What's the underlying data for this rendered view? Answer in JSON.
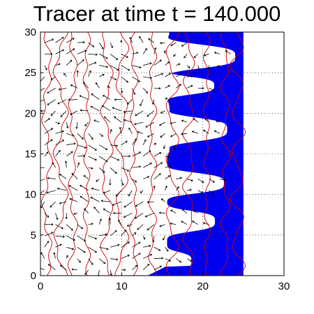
{
  "chart_data": {
    "type": "quiver",
    "title": "Tracer at time t = 140.000",
    "xlabel": "",
    "ylabel": "",
    "xlim": [
      0,
      30
    ],
    "ylim": [
      0,
      30
    ],
    "xticks": [
      0,
      10,
      20,
      30
    ],
    "yticks": [
      0,
      5,
      10,
      15,
      20,
      25,
      30
    ],
    "grid": "dotted",
    "tracer_color": "#0000ee",
    "contour_color": "#cc0000",
    "arrow_color": "#000000",
    "tracer_front": {
      "x_base": 15.6,
      "x_right_edge": 25,
      "fingers": [
        {
          "y": 1.8,
          "x_tip": 18.6,
          "width": 1.2
        },
        {
          "y": 6.7,
          "x_tip": 21.5,
          "width": 1.4
        },
        {
          "y": 11.4,
          "x_tip": 22.6,
          "width": 1.4
        },
        {
          "y": 18.0,
          "x_tip": 23.0,
          "width": 1.6
        },
        {
          "y": 23.4,
          "x_tip": 21.4,
          "width": 1.2
        },
        {
          "y": 27.0,
          "x_tip": 24.0,
          "width": 1.6
        }
      ]
    },
    "contour_lines_x": [
      0.8,
      2.5,
      4.0,
      5.7,
      8.2,
      10.0,
      11.5,
      13.8,
      16.2,
      18.3,
      20.5,
      22.8,
      24.3
    ]
  }
}
